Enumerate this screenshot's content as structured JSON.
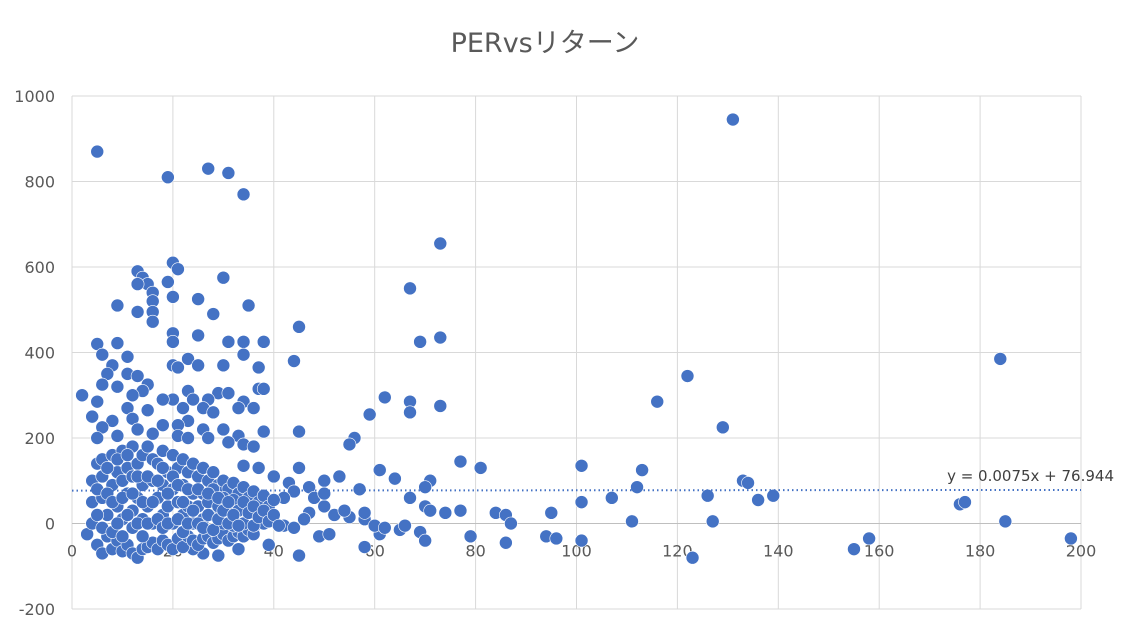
{
  "chart_data": {
    "type": "scatter",
    "title": "PERvsリターン",
    "xlabel": "",
    "ylabel": "",
    "xlim": [
      0,
      200
    ],
    "ylim": [
      -200,
      1000
    ],
    "x_ticks": [
      0,
      20,
      40,
      60,
      80,
      100,
      120,
      140,
      160,
      180,
      200
    ],
    "y_ticks": [
      -200,
      0,
      200,
      400,
      600,
      800,
      1000
    ],
    "grid": true,
    "legend": "none",
    "marker_color": "#4472C4",
    "trendline": {
      "type": "linear",
      "slope": 0.0075,
      "intercept": 76.944,
      "label": "y = 0.0075x + 76.944",
      "style": "dotted",
      "color": "#4472C4"
    },
    "points": [
      [
        2,
        300
      ],
      [
        5,
        870
      ],
      [
        19,
        810
      ],
      [
        27,
        830
      ],
      [
        31,
        820
      ],
      [
        34,
        770
      ],
      [
        131,
        945
      ],
      [
        73,
        655
      ],
      [
        20,
        610
      ],
      [
        21,
        595
      ],
      [
        13,
        590
      ],
      [
        14,
        575
      ],
      [
        30,
        575
      ],
      [
        15,
        560
      ],
      [
        13,
        560
      ],
      [
        19,
        565
      ],
      [
        16,
        540
      ],
      [
        20,
        530
      ],
      [
        25,
        525
      ],
      [
        16,
        520
      ],
      [
        9,
        510
      ],
      [
        35,
        510
      ],
      [
        13,
        495
      ],
      [
        16,
        495
      ],
      [
        28,
        490
      ],
      [
        16,
        472
      ],
      [
        45,
        460
      ],
      [
        67,
        550
      ],
      [
        73,
        435
      ],
      [
        69,
        425
      ],
      [
        5,
        420
      ],
      [
        9,
        422
      ],
      [
        20,
        445
      ],
      [
        25,
        440
      ],
      [
        31,
        425
      ],
      [
        34,
        425
      ],
      [
        38,
        425
      ],
      [
        20,
        425
      ],
      [
        6,
        395
      ],
      [
        11,
        390
      ],
      [
        34,
        395
      ],
      [
        23,
        385
      ],
      [
        44,
        380
      ],
      [
        20,
        370
      ],
      [
        25,
        370
      ],
      [
        30,
        370
      ],
      [
        37,
        365
      ],
      [
        8,
        370
      ],
      [
        7,
        350
      ],
      [
        11,
        350
      ],
      [
        13,
        345
      ],
      [
        15,
        325
      ],
      [
        6,
        325
      ],
      [
        9,
        320
      ],
      [
        14,
        310
      ],
      [
        23,
        310
      ],
      [
        29,
        305
      ],
      [
        21,
        365
      ],
      [
        31,
        305
      ],
      [
        37,
        315
      ],
      [
        38,
        315
      ],
      [
        12,
        300
      ],
      [
        20,
        290
      ],
      [
        24,
        290
      ],
      [
        27,
        290
      ],
      [
        34,
        285
      ],
      [
        62,
        295
      ],
      [
        67,
        285
      ],
      [
        73,
        275
      ],
      [
        59,
        255
      ],
      [
        67,
        260
      ],
      [
        36,
        270
      ],
      [
        4,
        250
      ],
      [
        5,
        285
      ],
      [
        11,
        270
      ],
      [
        18,
        290
      ],
      [
        22,
        270
      ],
      [
        26,
        270
      ],
      [
        15,
        265
      ],
      [
        28,
        260
      ],
      [
        33,
        270
      ],
      [
        8,
        240
      ],
      [
        12,
        245
      ],
      [
        18,
        230
      ],
      [
        23,
        240
      ],
      [
        6,
        225
      ],
      [
        13,
        220
      ],
      [
        21,
        230
      ],
      [
        26,
        220
      ],
      [
        30,
        220
      ],
      [
        38,
        215
      ],
      [
        45,
        215
      ],
      [
        5,
        200
      ],
      [
        9,
        205
      ],
      [
        16,
        210
      ],
      [
        21,
        205
      ],
      [
        23,
        200
      ],
      [
        27,
        200
      ],
      [
        33,
        205
      ],
      [
        31,
        190
      ],
      [
        34,
        185
      ],
      [
        56,
        200
      ],
      [
        55,
        185
      ],
      [
        36,
        180
      ],
      [
        116,
        285
      ],
      [
        122,
        345
      ],
      [
        129,
        225
      ],
      [
        184,
        385
      ],
      [
        77,
        145
      ],
      [
        81,
        130
      ],
      [
        101,
        135
      ],
      [
        113,
        125
      ],
      [
        61,
        125
      ],
      [
        64,
        105
      ],
      [
        71,
        100
      ],
      [
        70,
        85
      ],
      [
        50,
        100
      ],
      [
        53,
        110
      ],
      [
        40,
        110
      ],
      [
        45,
        130
      ],
      [
        37,
        130
      ],
      [
        34,
        135
      ],
      [
        133,
        100
      ],
      [
        134,
        95
      ],
      [
        112,
        85
      ],
      [
        126,
        65
      ],
      [
        107,
        60
      ],
      [
        136,
        55
      ],
      [
        139,
        65
      ],
      [
        101,
        50
      ],
      [
        57,
        80
      ],
      [
        47,
        85
      ],
      [
        43,
        95
      ],
      [
        44,
        75
      ],
      [
        42,
        60
      ],
      [
        67,
        60
      ],
      [
        70,
        40
      ],
      [
        71,
        30
      ],
      [
        74,
        25
      ],
      [
        84,
        25
      ],
      [
        86,
        20
      ],
      [
        77,
        30
      ],
      [
        95,
        25
      ],
      [
        111,
        5
      ],
      [
        127,
        5
      ],
      [
        185,
        5
      ],
      [
        176,
        45
      ],
      [
        177,
        50
      ],
      [
        87,
        0
      ],
      [
        79,
        -30
      ],
      [
        86,
        -45
      ],
      [
        94,
        -30
      ],
      [
        96,
        -35
      ],
      [
        101,
        -40
      ],
      [
        123,
        -80
      ],
      [
        155,
        -60
      ],
      [
        158,
        -35
      ],
      [
        198,
        -35
      ],
      [
        69,
        -20
      ],
      [
        70,
        -40
      ],
      [
        61,
        -25
      ],
      [
        58,
        -55
      ],
      [
        49,
        -30
      ],
      [
        51,
        -25
      ],
      [
        45,
        -75
      ],
      [
        33,
        -60
      ],
      [
        29,
        -75
      ],
      [
        26,
        -70
      ],
      [
        24,
        -60
      ],
      [
        39,
        -50
      ],
      [
        58,
        10
      ],
      [
        60,
        -5
      ],
      [
        55,
        15
      ],
      [
        52,
        20
      ],
      [
        54,
        30
      ],
      [
        50,
        40
      ],
      [
        47,
        25
      ],
      [
        48,
        60
      ],
      [
        50,
        70
      ],
      [
        62,
        -10
      ],
      [
        65,
        -15
      ],
      [
        58,
        25
      ],
      [
        66,
        -5
      ],
      [
        46,
        10
      ],
      [
        40,
        5
      ],
      [
        42,
        -5
      ],
      [
        36,
        -10
      ],
      [
        38,
        0
      ],
      [
        44,
        -10
      ],
      [
        4,
        100
      ],
      [
        4,
        50
      ],
      [
        3,
        -25
      ],
      [
        4,
        0
      ],
      [
        5,
        -50
      ],
      [
        5,
        140
      ],
      [
        6,
        -70
      ],
      [
        6,
        150
      ],
      [
        7,
        -30
      ],
      [
        8,
        160
      ],
      [
        8,
        -60
      ],
      [
        9,
        120
      ],
      [
        9,
        -40
      ],
      [
        10,
        170
      ],
      [
        10,
        -65
      ],
      [
        11,
        130
      ],
      [
        11,
        -50
      ],
      [
        12,
        180
      ],
      [
        12,
        -70
      ],
      [
        13,
        140
      ],
      [
        13,
        -80
      ],
      [
        14,
        160
      ],
      [
        14,
        -60
      ],
      [
        15,
        180
      ],
      [
        15,
        -55
      ],
      [
        16,
        150
      ],
      [
        16,
        -45
      ],
      [
        17,
        140
      ],
      [
        17,
        -60
      ],
      [
        18,
        170
      ],
      [
        18,
        -40
      ],
      [
        19,
        120
      ],
      [
        19,
        -50
      ],
      [
        20,
        160
      ],
      [
        20,
        -60
      ],
      [
        21,
        130
      ],
      [
        21,
        -35
      ],
      [
        22,
        150
      ],
      [
        22,
        -55
      ],
      [
        23,
        120
      ],
      [
        23,
        -30
      ],
      [
        24,
        140
      ],
      [
        24,
        -40
      ],
      [
        25,
        110
      ],
      [
        25,
        -50
      ],
      [
        26,
        130
      ],
      [
        26,
        -35
      ],
      [
        27,
        100
      ],
      [
        27,
        -30
      ],
      [
        28,
        120
      ],
      [
        28,
        -45
      ],
      [
        29,
        90
      ],
      [
        29,
        -35
      ],
      [
        30,
        100
      ],
      [
        30,
        -25
      ],
      [
        31,
        80
      ],
      [
        31,
        -40
      ],
      [
        32,
        95
      ],
      [
        32,
        -30
      ],
      [
        33,
        70
      ],
      [
        33,
        -20
      ],
      [
        34,
        85
      ],
      [
        34,
        -30
      ],
      [
        35,
        60
      ],
      [
        35,
        -15
      ],
      [
        36,
        75
      ],
      [
        36,
        -25
      ],
      [
        37,
        50
      ],
      [
        38,
        65
      ],
      [
        39,
        40
      ],
      [
        40,
        55
      ],
      [
        6,
        60
      ],
      [
        7,
        20
      ],
      [
        8,
        90
      ],
      [
        9,
        40
      ],
      [
        10,
        100
      ],
      [
        10,
        10
      ],
      [
        11,
        70
      ],
      [
        12,
        30
      ],
      [
        12,
        110
      ],
      [
        13,
        60
      ],
      [
        14,
        10
      ],
      [
        14,
        90
      ],
      [
        15,
        40
      ],
      [
        16,
        100
      ],
      [
        16,
        0
      ],
      [
        17,
        60
      ],
      [
        18,
        20
      ],
      [
        18,
        90
      ],
      [
        19,
        40
      ],
      [
        20,
        80
      ],
      [
        20,
        0
      ],
      [
        21,
        50
      ],
      [
        22,
        20
      ],
      [
        22,
        90
      ],
      [
        23,
        40
      ],
      [
        24,
        70
      ],
      [
        24,
        0
      ],
      [
        25,
        40
      ],
      [
        26,
        70
      ],
      [
        26,
        10
      ],
      [
        27,
        50
      ],
      [
        28,
        20
      ],
      [
        28,
        80
      ],
      [
        29,
        40
      ],
      [
        30,
        60
      ],
      [
        30,
        0
      ],
      [
        31,
        30
      ],
      [
        32,
        55
      ],
      [
        32,
        -5
      ],
      [
        33,
        30
      ],
      [
        34,
        50
      ],
      [
        34,
        0
      ],
      [
        35,
        25
      ],
      [
        36,
        40
      ],
      [
        36,
        -5
      ],
      [
        37,
        15
      ],
      [
        38,
        30
      ],
      [
        39,
        5
      ],
      [
        40,
        20
      ],
      [
        41,
        -5
      ],
      [
        5,
        20
      ],
      [
        5,
        80
      ],
      [
        6,
        110
      ],
      [
        6,
        -10
      ],
      [
        7,
        130
      ],
      [
        7,
        70
      ],
      [
        8,
        -20
      ],
      [
        8,
        50
      ],
      [
        9,
        0
      ],
      [
        9,
        150
      ],
      [
        10,
        60
      ],
      [
        10,
        -30
      ],
      [
        11,
        20
      ],
      [
        11,
        160
      ],
      [
        12,
        -10
      ],
      [
        12,
        70
      ],
      [
        13,
        0
      ],
      [
        13,
        110
      ],
      [
        14,
        50
      ],
      [
        14,
        -30
      ],
      [
        15,
        110
      ],
      [
        15,
        0
      ],
      [
        16,
        50
      ],
      [
        17,
        100
      ],
      [
        17,
        10
      ],
      [
        18,
        -10
      ],
      [
        18,
        130
      ],
      [
        19,
        70
      ],
      [
        19,
        0
      ],
      [
        20,
        110
      ],
      [
        21,
        10
      ],
      [
        21,
        90
      ],
      [
        22,
        -20
      ],
      [
        22,
        50
      ],
      [
        23,
        80
      ],
      [
        23,
        0
      ],
      [
        24,
        30
      ],
      [
        25,
        0
      ],
      [
        25,
        80
      ],
      [
        26,
        -10
      ],
      [
        27,
        20
      ],
      [
        27,
        70
      ],
      [
        28,
        -15
      ],
      [
        29,
        10
      ],
      [
        29,
        60
      ],
      [
        30,
        30
      ],
      [
        31,
        0
      ],
      [
        31,
        50
      ],
      [
        32,
        20
      ],
      [
        33,
        -5
      ]
    ]
  }
}
